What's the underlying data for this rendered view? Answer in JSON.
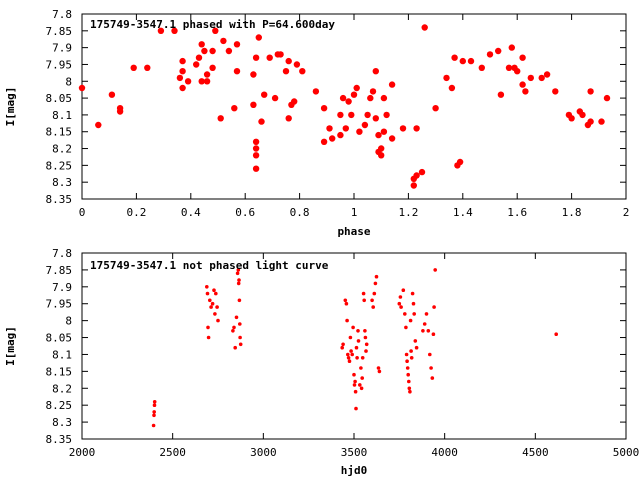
{
  "chart_data": [
    {
      "type": "scatter",
      "title": "175749-3547.1 phased with P=64.600day",
      "xlabel": "phase",
      "ylabel": "I[mag]",
      "xlim": [
        0,
        2
      ],
      "ylim": [
        8.35,
        7.8
      ],
      "y_inverted": true,
      "grid": false,
      "marker": "filled-circle",
      "color": "#ff0000",
      "x_ticks": [
        0,
        0.2,
        0.4,
        0.6,
        0.8,
        1,
        1.2,
        1.4,
        1.6,
        1.8,
        2
      ],
      "x_tick_labels": [
        "0",
        "0.2",
        "0.4",
        "0.6",
        "0.8",
        "1",
        "1.2",
        "1.4",
        "1.6",
        "1.8",
        "2"
      ],
      "y_ticks": [
        7.8,
        7.85,
        7.9,
        7.95,
        8,
        8.05,
        8.1,
        8.15,
        8.2,
        8.25,
        8.3,
        8.35
      ],
      "y_tick_labels": [
        "7.8",
        "7.85",
        "7.9",
        "7.95",
        "8",
        "8.05",
        "8.1",
        "8.15",
        "8.2",
        "8.25",
        "8.3",
        "8.35"
      ],
      "points": [
        [
          0.0,
          8.02
        ],
        [
          0.06,
          8.13
        ],
        [
          0.11,
          8.04
        ],
        [
          0.14,
          8.08
        ],
        [
          0.14,
          8.09
        ],
        [
          0.19,
          7.96
        ],
        [
          0.24,
          7.96
        ],
        [
          0.29,
          7.85
        ],
        [
          0.34,
          7.85
        ],
        [
          0.36,
          7.99
        ],
        [
          0.37,
          7.97
        ],
        [
          0.37,
          8.02
        ],
        [
          0.37,
          7.94
        ],
        [
          0.39,
          8.0
        ],
        [
          0.42,
          7.95
        ],
        [
          0.43,
          7.93
        ],
        [
          0.44,
          7.89
        ],
        [
          0.44,
          8.0
        ],
        [
          0.45,
          7.91
        ],
        [
          0.46,
          8.0
        ],
        [
          0.46,
          7.98
        ],
        [
          0.48,
          7.91
        ],
        [
          0.48,
          7.96
        ],
        [
          0.49,
          7.85
        ],
        [
          0.51,
          8.11
        ],
        [
          0.52,
          7.88
        ],
        [
          0.54,
          7.91
        ],
        [
          0.56,
          8.08
        ],
        [
          0.57,
          7.89
        ],
        [
          0.57,
          7.97
        ],
        [
          0.63,
          7.98
        ],
        [
          0.63,
          8.07
        ],
        [
          0.64,
          8.18
        ],
        [
          0.64,
          8.2
        ],
        [
          0.64,
          8.22
        ],
        [
          0.64,
          8.26
        ],
        [
          0.64,
          7.93
        ],
        [
          0.65,
          7.87
        ],
        [
          0.66,
          8.12
        ],
        [
          0.67,
          8.04
        ],
        [
          0.69,
          7.93
        ],
        [
          0.71,
          8.05
        ],
        [
          0.72,
          7.92
        ],
        [
          0.73,
          7.92
        ],
        [
          0.75,
          7.97
        ],
        [
          0.76,
          8.11
        ],
        [
          0.76,
          7.94
        ],
        [
          0.77,
          8.07
        ],
        [
          0.78,
          8.06
        ],
        [
          0.79,
          7.95
        ],
        [
          0.81,
          7.97
        ],
        [
          0.86,
          8.03
        ],
        [
          0.89,
          8.08
        ],
        [
          0.89,
          8.18
        ],
        [
          0.91,
          8.14
        ],
        [
          0.92,
          8.17
        ],
        [
          0.95,
          8.1
        ],
        [
          0.95,
          8.16
        ],
        [
          0.96,
          8.05
        ],
        [
          0.97,
          8.14
        ],
        [
          0.98,
          8.06
        ],
        [
          0.99,
          8.1
        ],
        [
          1.0,
          8.04
        ],
        [
          1.01,
          8.02
        ],
        [
          1.02,
          8.15
        ],
        [
          1.04,
          8.13
        ],
        [
          1.05,
          8.1
        ],
        [
          1.06,
          8.05
        ],
        [
          1.07,
          8.03
        ],
        [
          1.08,
          8.11
        ],
        [
          1.08,
          7.97
        ],
        [
          1.09,
          8.16
        ],
        [
          1.09,
          8.21
        ],
        [
          1.1,
          8.2
        ],
        [
          1.1,
          8.22
        ],
        [
          1.11,
          8.05
        ],
        [
          1.11,
          8.15
        ],
        [
          1.12,
          8.1
        ],
        [
          1.14,
          8.17
        ],
        [
          1.14,
          8.01
        ],
        [
          1.18,
          8.14
        ],
        [
          1.22,
          8.31
        ],
        [
          1.22,
          8.29
        ],
        [
          1.23,
          8.14
        ],
        [
          1.23,
          8.28
        ],
        [
          1.25,
          8.27
        ],
        [
          1.26,
          7.84
        ],
        [
          1.3,
          8.08
        ],
        [
          1.34,
          7.99
        ],
        [
          1.36,
          8.02
        ],
        [
          1.37,
          7.93
        ],
        [
          1.38,
          8.25
        ],
        [
          1.39,
          8.24
        ],
        [
          1.4,
          7.94
        ],
        [
          1.43,
          7.94
        ],
        [
          1.47,
          7.96
        ],
        [
          1.5,
          7.92
        ],
        [
          1.53,
          7.91
        ],
        [
          1.54,
          8.04
        ],
        [
          1.57,
          7.96
        ],
        [
          1.58,
          7.9
        ],
        [
          1.59,
          7.96
        ],
        [
          1.6,
          7.97
        ],
        [
          1.62,
          8.01
        ],
        [
          1.62,
          7.93
        ],
        [
          1.63,
          8.03
        ],
        [
          1.65,
          7.99
        ],
        [
          1.69,
          7.99
        ],
        [
          1.71,
          7.98
        ],
        [
          1.74,
          8.03
        ],
        [
          1.79,
          8.1
        ],
        [
          1.8,
          8.11
        ],
        [
          1.83,
          8.09
        ],
        [
          1.84,
          8.1
        ],
        [
          1.86,
          8.13
        ],
        [
          1.87,
          8.12
        ],
        [
          1.87,
          8.03
        ],
        [
          1.91,
          8.12
        ],
        [
          1.93,
          8.05
        ]
      ]
    },
    {
      "type": "scatter",
      "title": "175749-3547.1 not phased light curve",
      "xlabel": "hjd0",
      "ylabel": "I[mag]",
      "xlim": [
        2000,
        5000
      ],
      "ylim": [
        8.35,
        7.8
      ],
      "y_inverted": true,
      "grid": false,
      "marker": "small-dot",
      "color": "#ff0000",
      "x_ticks": [
        2000,
        2500,
        3000,
        3500,
        4000,
        4500,
        5000
      ],
      "x_tick_labels": [
        "2000",
        "2500",
        "3000",
        "3500",
        "4000",
        "4500",
        "5000"
      ],
      "y_ticks": [
        7.8,
        7.85,
        7.9,
        7.95,
        8,
        8.05,
        8.1,
        8.15,
        8.2,
        8.25,
        8.3,
        8.35
      ],
      "y_tick_labels": [
        "7.8",
        "7.85",
        "7.9",
        "7.95",
        "8",
        "8.05",
        "8.1",
        "8.15",
        "8.2",
        "8.25",
        "8.3",
        "8.35"
      ],
      "points": [
        [
          2395,
          8.31
        ],
        [
          2397,
          8.28
        ],
        [
          2398,
          8.27
        ],
        [
          2400,
          8.25
        ],
        [
          2401,
          8.24
        ],
        [
          2688,
          7.9
        ],
        [
          2692,
          7.92
        ],
        [
          2695,
          8.02
        ],
        [
          2698,
          8.05
        ],
        [
          2705,
          7.94
        ],
        [
          2712,
          7.96
        ],
        [
          2720,
          7.95
        ],
        [
          2728,
          7.91
        ],
        [
          2733,
          7.98
        ],
        [
          2738,
          7.92
        ],
        [
          2745,
          7.96
        ],
        [
          2750,
          8.0
        ],
        [
          2832,
          8.03
        ],
        [
          2838,
          8.02
        ],
        [
          2845,
          8.08
        ],
        [
          2852,
          7.99
        ],
        [
          2858,
          7.86
        ],
        [
          2862,
          7.85
        ],
        [
          2864,
          7.89
        ],
        [
          2866,
          7.88
        ],
        [
          2868,
          7.94
        ],
        [
          2870,
          8.01
        ],
        [
          2872,
          8.05
        ],
        [
          2875,
          8.07
        ],
        [
          3435,
          8.08
        ],
        [
          3440,
          8.07
        ],
        [
          3452,
          7.94
        ],
        [
          3458,
          7.95
        ],
        [
          3462,
          8.0
        ],
        [
          3466,
          8.1
        ],
        [
          3470,
          8.11
        ],
        [
          3475,
          8.12
        ],
        [
          3480,
          8.05
        ],
        [
          3484,
          8.09
        ],
        [
          3490,
          8.1
        ],
        [
          3495,
          8.02
        ],
        [
          3500,
          8.16
        ],
        [
          3503,
          8.19
        ],
        [
          3506,
          8.18
        ],
        [
          3509,
          8.21
        ],
        [
          3511,
          8.26
        ],
        [
          3514,
          8.08
        ],
        [
          3517,
          8.11
        ],
        [
          3522,
          8.03
        ],
        [
          3525,
          8.06
        ],
        [
          3532,
          8.19
        ],
        [
          3538,
          8.14
        ],
        [
          3542,
          8.2
        ],
        [
          3545,
          8.17
        ],
        [
          3548,
          8.11
        ],
        [
          3553,
          7.92
        ],
        [
          3556,
          7.94
        ],
        [
          3560,
          8.03
        ],
        [
          3563,
          8.05
        ],
        [
          3566,
          8.09
        ],
        [
          3570,
          8.07
        ],
        [
          3600,
          7.94
        ],
        [
          3606,
          7.96
        ],
        [
          3612,
          7.92
        ],
        [
          3618,
          7.89
        ],
        [
          3624,
          7.87
        ],
        [
          3635,
          8.14
        ],
        [
          3640,
          8.15
        ],
        [
          3750,
          7.95
        ],
        [
          3756,
          7.93
        ],
        [
          3760,
          7.96
        ],
        [
          3772,
          7.91
        ],
        [
          3780,
          7.98
        ],
        [
          3786,
          8.02
        ],
        [
          3790,
          8.1
        ],
        [
          3793,
          8.12
        ],
        [
          3796,
          8.14
        ],
        [
          3799,
          8.16
        ],
        [
          3802,
          8.18
        ],
        [
          3805,
          8.2
        ],
        [
          3808,
          8.21
        ],
        [
          3812,
          8.0
        ],
        [
          3815,
          8.09
        ],
        [
          3818,
          8.11
        ],
        [
          3823,
          7.92
        ],
        [
          3828,
          7.95
        ],
        [
          3832,
          7.98
        ],
        [
          3838,
          8.06
        ],
        [
          3845,
          8.08
        ],
        [
          3880,
          8.03
        ],
        [
          3890,
          8.01
        ],
        [
          3900,
          7.98
        ],
        [
          3910,
          8.03
        ],
        [
          3918,
          8.1
        ],
        [
          3925,
          8.14
        ],
        [
          3932,
          8.17
        ],
        [
          3938,
          8.04
        ],
        [
          3942,
          7.96
        ],
        [
          3948,
          7.85
        ],
        [
          4615,
          8.04
        ]
      ]
    }
  ]
}
